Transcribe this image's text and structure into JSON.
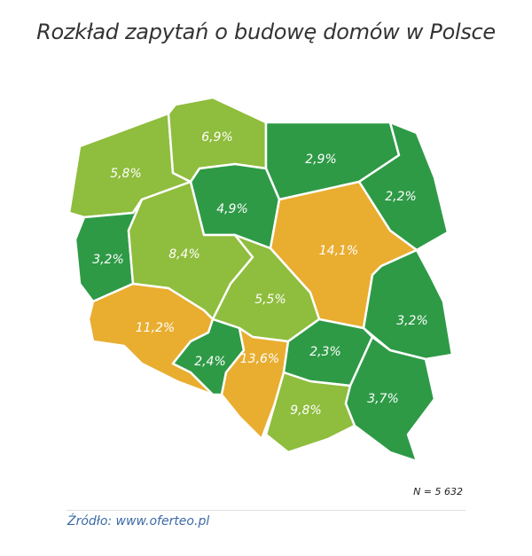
{
  "title": "Rozkład zapytań o budowę domów w Polsce",
  "sample_size": "N = 5 632",
  "source": "Źródło: www.oferteo.pl",
  "colors": {
    "low": "#2e9a46",
    "mid": "#8fbd3d",
    "high": "#e9ad30"
  },
  "regions": [
    {
      "id": "zachodniopomorskie",
      "value": "5,8%",
      "level": "mid"
    },
    {
      "id": "pomorskie",
      "value": "6,9%",
      "level": "mid"
    },
    {
      "id": "warminsko-mazurskie",
      "value": "2,9%",
      "level": "low"
    },
    {
      "id": "podlaskie",
      "value": "2,2%",
      "level": "low"
    },
    {
      "id": "kujawsko-pomorskie",
      "value": "4,9%",
      "level": "low"
    },
    {
      "id": "lubuskie",
      "value": "3,2%",
      "level": "low"
    },
    {
      "id": "wielkopolskie",
      "value": "8,4%",
      "level": "mid"
    },
    {
      "id": "mazowieckie",
      "value": "14,1%",
      "level": "high"
    },
    {
      "id": "lodzkie",
      "value": "5,5%",
      "level": "mid"
    },
    {
      "id": "lubelskie",
      "value": "3,2%",
      "level": "low"
    },
    {
      "id": "dolnoslaskie",
      "value": "11,2%",
      "level": "high"
    },
    {
      "id": "opolskie",
      "value": "2,4%",
      "level": "low"
    },
    {
      "id": "slaskie",
      "value": "13,6%",
      "level": "high"
    },
    {
      "id": "swietokrzyskie",
      "value": "2,3%",
      "level": "low"
    },
    {
      "id": "malopolskie",
      "value": "9,8%",
      "level": "mid"
    },
    {
      "id": "podkarpackie",
      "value": "3,7%",
      "level": "low"
    }
  ]
}
